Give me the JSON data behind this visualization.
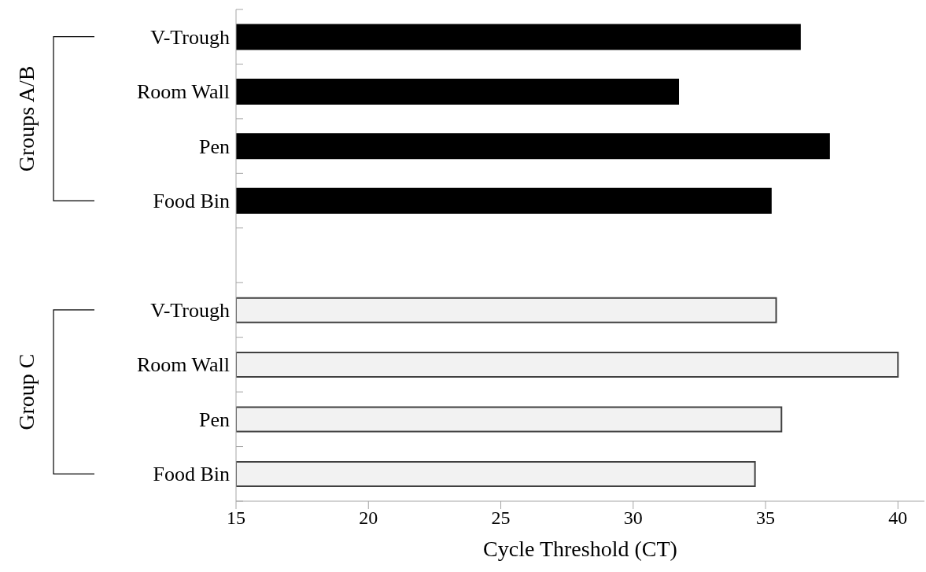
{
  "chart_data": {
    "type": "bar",
    "orientation": "horizontal",
    "xlabel": "Cycle Threshold (CT)",
    "categories": [
      "V-Trough",
      "Room Wall",
      "Pen",
      "Food Bin",
      null,
      "V-Trough",
      "Room Wall",
      "Pen",
      "Food Bin"
    ],
    "series": [
      {
        "color": "#000000",
        "values": [
          36.3,
          31.7,
          37.4,
          35.2,
          null,
          null,
          null,
          null,
          null
        ]
      },
      {
        "color": "#f2f2f2",
        "values": [
          null,
          null,
          null,
          null,
          null,
          35.4,
          40.0,
          35.6,
          34.6
        ]
      }
    ],
    "annotations": [
      "Groups A/B",
      "Group C"
    ],
    "xlim": [
      15,
      41
    ],
    "xticks": [
      15,
      20,
      25,
      30,
      35,
      40
    ],
    "grid": false,
    "legend": false
  }
}
